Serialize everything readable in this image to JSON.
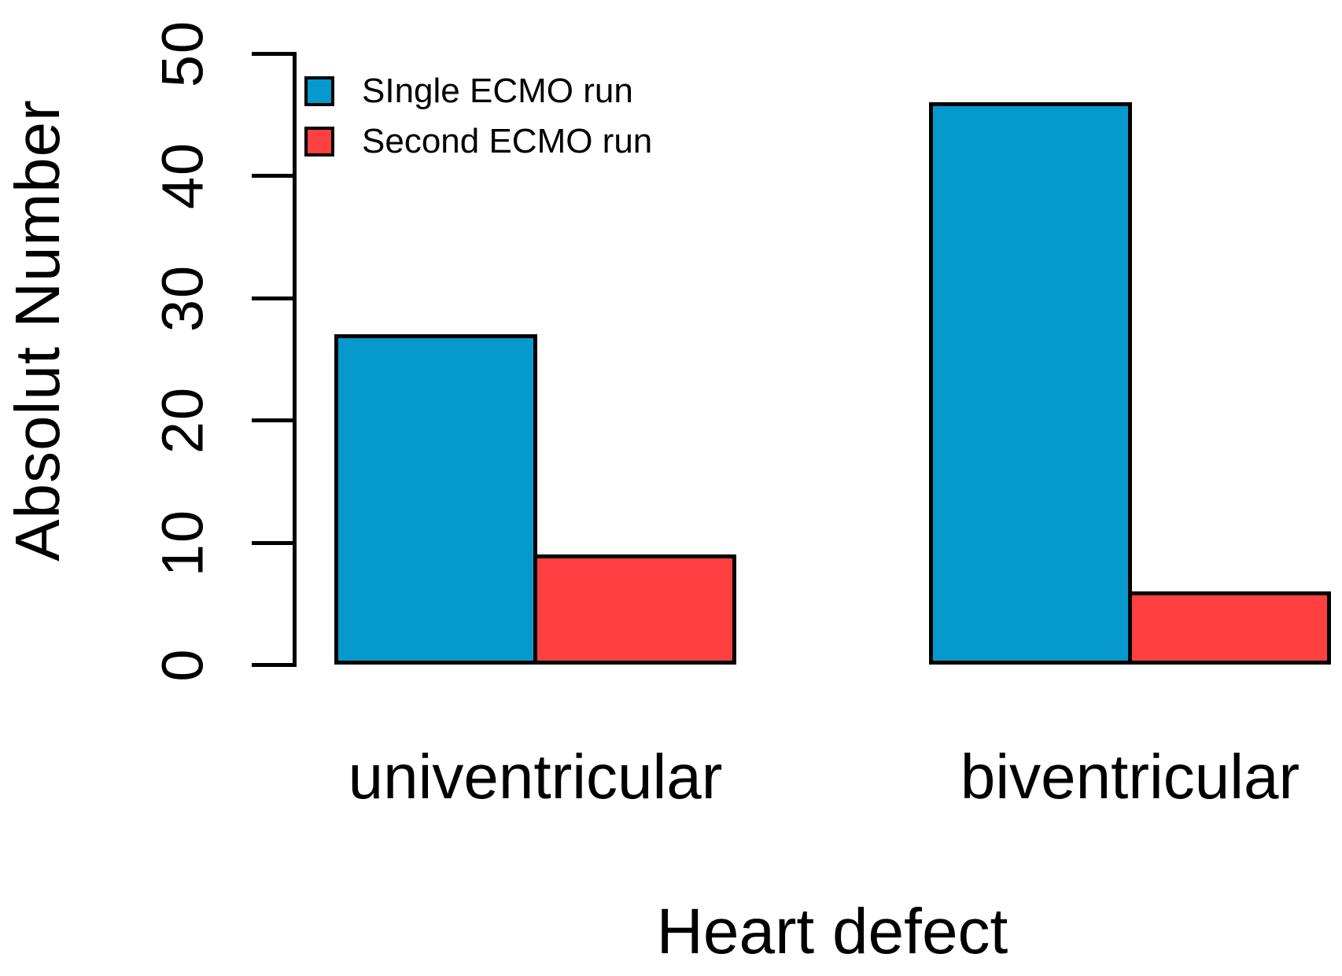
{
  "chart_data": {
    "type": "bar",
    "title": "",
    "xlabel": "Heart defect",
    "ylabel": "Absolut Number",
    "categories": [
      "univentricular",
      "biventricular"
    ],
    "series": [
      {
        "name": "SIngle ECMO run",
        "color": "#0599CE",
        "values": [
          27,
          46
        ]
      },
      {
        "name": "Second ECMO run",
        "color": "#FF4040",
        "values": [
          9,
          6
        ]
      }
    ],
    "ylim": [
      0,
      50
    ],
    "yticks": [
      0,
      10,
      20,
      30,
      40,
      50
    ],
    "grid": false,
    "legend_position": "top-left",
    "bar_border_color": "#000000",
    "axis_color": "#000000"
  }
}
